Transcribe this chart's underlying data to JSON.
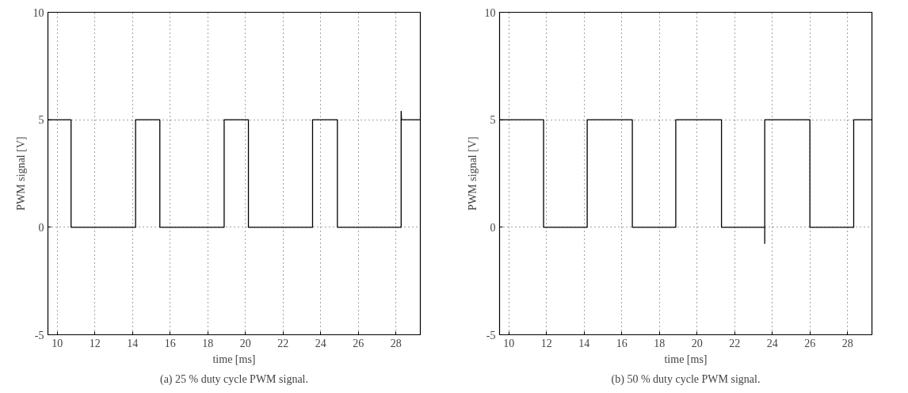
{
  "chart_data": [
    {
      "type": "line",
      "xlabel": "time [ms]",
      "ylabel": "PWM signal [V]",
      "annotations": [
        "(a) 25 % duty cycle PWM signal."
      ],
      "xlim": [
        9.5,
        29.3
      ],
      "xticks": [
        10,
        12,
        14,
        16,
        18,
        20,
        22,
        24,
        26,
        28
      ],
      "ylim": [
        -5,
        10
      ],
      "yticks": [
        -5,
        0,
        5,
        10
      ],
      "grid": true,
      "line_style": "solid",
      "series": [
        {
          "color": "#000000",
          "x": [
            9.5,
            10.73,
            10.73,
            14.16,
            14.16,
            15.45,
            15.45,
            18.87,
            18.87,
            20.16,
            20.16,
            23.57,
            23.57,
            24.89,
            24.89,
            28.28,
            28.28,
            28.3,
            29.3
          ],
          "values": [
            5,
            5,
            0,
            0,
            5,
            5,
            0,
            0,
            5,
            5,
            0,
            0,
            5,
            5,
            0,
            0,
            5.4,
            5,
            5
          ]
        }
      ]
    },
    {
      "type": "line",
      "xlabel": "time [ms]",
      "ylabel": "PWM signal [V]",
      "annotations": [
        "(b) 50 % duty cycle PWM signal."
      ],
      "xlim": [
        9.5,
        29.3
      ],
      "xticks": [
        10,
        12,
        14,
        16,
        18,
        20,
        22,
        24,
        26,
        28
      ],
      "ylim": [
        -5,
        10
      ],
      "yticks": [
        -5,
        0,
        5,
        10
      ],
      "grid": true,
      "line_style": "solid",
      "series": [
        {
          "color": "#000000",
          "x": [
            9.5,
            11.84,
            11.84,
            14.16,
            14.16,
            16.56,
            16.56,
            18.87,
            18.87,
            21.3,
            21.3,
            23.6,
            23.6,
            23.6,
            26.0,
            26.0,
            28.33,
            28.33,
            29.3
          ],
          "values": [
            5,
            5,
            0,
            0,
            5,
            5,
            0,
            0,
            5,
            5,
            0,
            0,
            -0.75,
            5,
            5,
            0,
            0,
            5,
            5
          ]
        }
      ]
    }
  ]
}
